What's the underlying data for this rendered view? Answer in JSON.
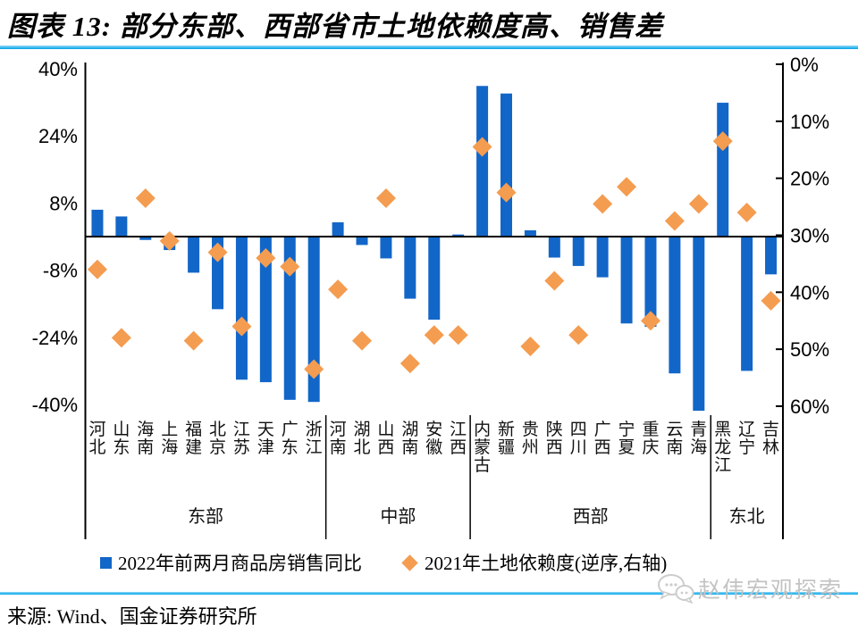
{
  "header": {
    "title": "图表 13: 部分东部、西部省市土地依赖度高、销售差"
  },
  "chart_data": {
    "type": "bar",
    "subtype": "bar-left-axis + diamond-scatter-right-axis",
    "categories": [
      "河北",
      "山东",
      "海南",
      "上海",
      "福建",
      "北京",
      "江苏",
      "天津",
      "广东",
      "浙江",
      "河南",
      "湖北",
      "山西",
      "湖南",
      "安徽",
      "江西",
      "内蒙古",
      "新疆",
      "贵州",
      "陕西",
      "四川",
      "广西",
      "宁夏",
      "重庆",
      "云南",
      "青海",
      "黑龙江",
      "辽宁",
      "吉林"
    ],
    "groups": [
      {
        "label": "东部",
        "count": 10
      },
      {
        "label": "中部",
        "count": 6
      },
      {
        "label": "西部",
        "count": 10
      },
      {
        "label": "东北",
        "count": 3
      }
    ],
    "series": [
      {
        "name": "2022年前两月商品房销售同比",
        "type": "bar",
        "axis": "left",
        "color": "#1266c8",
        "values": [
          6.4,
          4.8,
          -0.8,
          -3.2,
          -8.6,
          -17.3,
          -34.1,
          -34.7,
          -38.9,
          -39.4,
          3.4,
          -2.0,
          -5.2,
          -14.8,
          -19.8,
          0.5,
          35.9,
          34.1,
          1.5,
          -5.0,
          -7.0,
          -9.7,
          -20.7,
          -21.5,
          -32.6,
          -41.5,
          31.9,
          -32.0,
          -9.0
        ]
      },
      {
        "name": "2021年土地依赖度(逆序,右轴)",
        "type": "scatter",
        "marker": "diamond",
        "axis": "right",
        "color": "#f49c50",
        "values": [
          36,
          48,
          23.5,
          31,
          48.5,
          33,
          46,
          34,
          35.5,
          53.5,
          39.5,
          48.5,
          23.5,
          52.5,
          47.5,
          47.5,
          14.5,
          22.5,
          49.5,
          38,
          47.5,
          24.5,
          21.5,
          45,
          27.5,
          24.5,
          13.5,
          26,
          41.5
        ]
      }
    ],
    "left_axis": {
      "tick_labels": [
        "40%",
        "24%",
        "8%",
        "-8%",
        "-24%",
        "-40%"
      ],
      "tick_values": [
        40,
        24,
        8,
        -8,
        -24,
        -40
      ],
      "range": [
        41.5,
        -42.5
      ]
    },
    "right_axis": {
      "tick_labels": [
        "0%",
        "10%",
        "20%",
        "30%",
        "40%",
        "50%",
        "60%"
      ],
      "tick_values": [
        0,
        10,
        20,
        30,
        40,
        50,
        60
      ],
      "inverted": true,
      "range": [
        -0.8,
        61.2
      ]
    },
    "grid": false,
    "legend_position": "bottom"
  },
  "legend": {
    "bars": "2022年前两月商品房销售同比",
    "diamonds": "2021年土地依赖度(逆序,右轴)"
  },
  "colors": {
    "bar": "#1266c8",
    "diamond": "#f49c50",
    "accent_rule": "#00a3e8",
    "axis_line": "#000000",
    "watermark": "#c3c3c3"
  },
  "watermark": {
    "text": "赵伟宏观探索",
    "icon": "wechat-bubbles-icon"
  },
  "footer": {
    "source": "来源: Wind、国金证券研究所"
  }
}
